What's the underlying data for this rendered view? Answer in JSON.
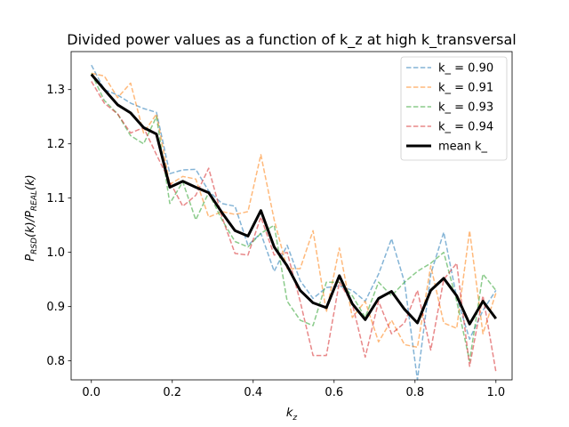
{
  "chart_data": {
    "type": "line",
    "title": "Divided power values as a function of k_z at high k_transversal",
    "xlabel_main": "k",
    "xlabel_sub": "z",
    "ylabel_parts": [
      {
        "text": "P",
        "sub": false
      },
      {
        "text": "RSD",
        "sub": true
      },
      {
        "text": "(k)/P",
        "sub": false
      },
      {
        "text": "REAL",
        "sub": true
      },
      {
        "text": "(k)",
        "sub": false
      }
    ],
    "xlim": [
      -0.05,
      1.04
    ],
    "ylim": [
      0.765,
      1.37
    ],
    "xticks": [
      0.0,
      0.2,
      0.4,
      0.6,
      0.8,
      1.0
    ],
    "xtick_labels": [
      "0.0",
      "0.2",
      "0.4",
      "0.6",
      "0.8",
      "1.0"
    ],
    "yticks": [
      0.8,
      0.9,
      1.0,
      1.1,
      1.2,
      1.3
    ],
    "ytick_labels": [
      "0.8",
      "0.9",
      "1.0",
      "1.1",
      "1.2",
      "1.3"
    ],
    "legend_position": "top-right",
    "x": [
      0.0,
      0.032,
      0.065,
      0.097,
      0.129,
      0.161,
      0.194,
      0.226,
      0.258,
      0.29,
      0.323,
      0.355,
      0.387,
      0.419,
      0.452,
      0.484,
      0.516,
      0.548,
      0.581,
      0.613,
      0.645,
      0.677,
      0.71,
      0.742,
      0.774,
      0.806,
      0.839,
      0.871,
      0.903,
      0.935,
      0.968,
      1.0
    ],
    "series": [
      {
        "name": "k_ = 0.90",
        "color": "#1f77b4",
        "dashed": true,
        "alpha": 0.55,
        "width": 1.5,
        "values": [
          1.345,
          1.3,
          1.29,
          1.275,
          1.265,
          1.258,
          1.145,
          1.152,
          1.153,
          1.113,
          1.09,
          1.085,
          1.013,
          1.035,
          0.965,
          1.013,
          0.948,
          0.915,
          0.935,
          0.938,
          0.93,
          0.91,
          0.96,
          1.025,
          0.945,
          0.765,
          0.96,
          1.037,
          0.917,
          0.84,
          0.893,
          0.93
        ]
      },
      {
        "name": "k_ = 0.91",
        "color": "#ff7f0e",
        "dashed": true,
        "alpha": 0.55,
        "width": 1.5,
        "values": [
          1.33,
          1.325,
          1.285,
          1.312,
          1.22,
          1.255,
          1.125,
          1.14,
          1.135,
          1.065,
          1.075,
          1.07,
          1.075,
          1.18,
          1.06,
          0.97,
          0.97,
          1.04,
          0.89,
          1.008,
          0.88,
          0.91,
          0.835,
          0.875,
          0.83,
          0.825,
          0.975,
          0.87,
          0.86,
          1.04,
          0.85,
          0.925
        ]
      },
      {
        "name": "k_ = 0.93",
        "color": "#2ca02c",
        "dashed": true,
        "alpha": 0.55,
        "width": 1.5,
        "values": [
          1.33,
          1.28,
          1.255,
          1.215,
          1.2,
          1.25,
          1.09,
          1.13,
          1.06,
          1.11,
          1.06,
          1.02,
          1.01,
          1.035,
          1.05,
          0.91,
          0.875,
          0.865,
          0.945,
          0.945,
          0.92,
          0.88,
          0.945,
          0.92,
          0.945,
          0.965,
          0.98,
          1.0,
          0.91,
          0.8,
          0.96,
          0.93
        ]
      },
      {
        "name": "k_ = 0.94",
        "color": "#d62728",
        "dashed": true,
        "alpha": 0.55,
        "width": 1.5,
        "values": [
          1.315,
          1.275,
          1.255,
          1.22,
          1.23,
          1.18,
          1.13,
          1.085,
          1.105,
          1.155,
          1.065,
          0.998,
          0.995,
          1.065,
          0.995,
          1.0,
          0.91,
          0.81,
          0.81,
          0.945,
          0.905,
          0.807,
          0.91,
          0.85,
          0.87,
          0.93,
          0.82,
          0.95,
          0.98,
          0.79,
          0.92,
          0.78
        ]
      },
      {
        "name": "mean k_",
        "color": "#000000",
        "dashed": false,
        "alpha": 1.0,
        "width": 3,
        "values": [
          1.328,
          1.3,
          1.272,
          1.257,
          1.23,
          1.218,
          1.12,
          1.131,
          1.12,
          1.11,
          1.073,
          1.04,
          1.03,
          1.077,
          1.01,
          0.975,
          0.93,
          0.907,
          0.898,
          0.957,
          0.905,
          0.876,
          0.915,
          0.928,
          0.895,
          0.87,
          0.93,
          0.952,
          0.92,
          0.868,
          0.91,
          0.878
        ]
      }
    ]
  }
}
